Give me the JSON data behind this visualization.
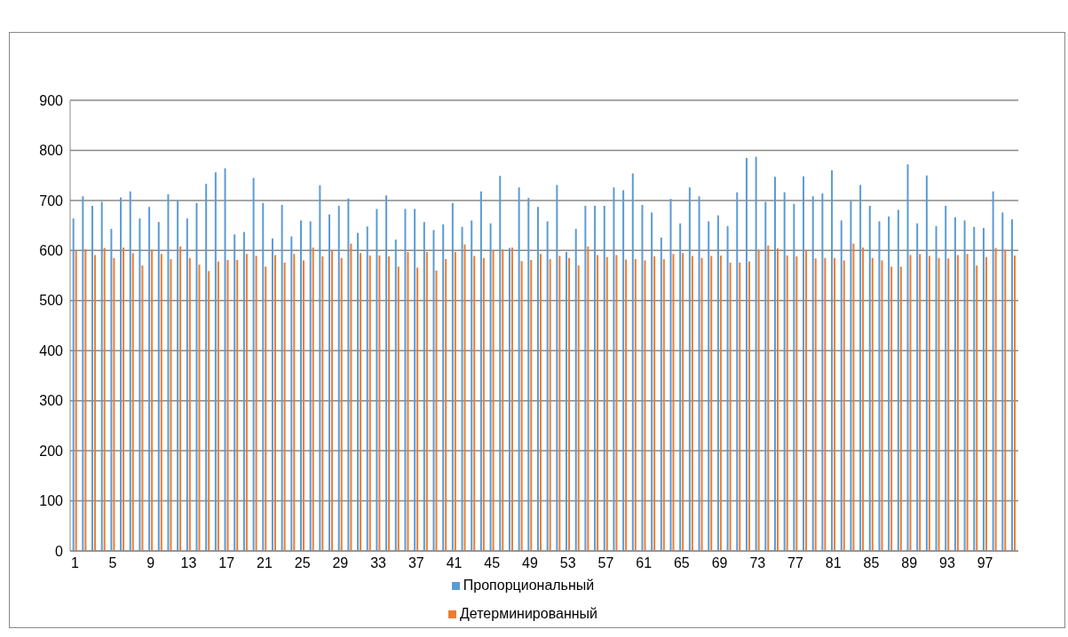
{
  "chart_data": {
    "type": "bar",
    "categories": [
      "1",
      null,
      null,
      null,
      "5",
      null,
      null,
      null,
      "9",
      null,
      null,
      null,
      "13",
      null,
      null,
      null,
      "17",
      null,
      null,
      null,
      "21",
      null,
      null,
      null,
      "25",
      null,
      null,
      null,
      "29",
      null,
      null,
      null,
      "33",
      null,
      null,
      null,
      "37",
      null,
      null,
      null,
      "41",
      null,
      null,
      null,
      "45",
      null,
      null,
      null,
      "49",
      null,
      null,
      null,
      "53",
      null,
      null,
      null,
      "57",
      null,
      null,
      null,
      "61",
      null,
      null,
      null,
      "65",
      null,
      null,
      null,
      "69",
      null,
      null,
      null,
      "73",
      null,
      null,
      null,
      "77",
      null,
      null,
      null,
      "81",
      null,
      null,
      null,
      "85",
      null,
      null,
      null,
      "89",
      null,
      null,
      null,
      "93",
      null,
      null,
      null,
      "97",
      null,
      null,
      null
    ],
    "series": [
      {
        "name": "Пропорциональный",
        "color": "#5b9bd5",
        "values": [
          664,
          708,
          689,
          697,
          643,
          706,
          718,
          664,
          687,
          657,
          712,
          700,
          664,
          695,
          733,
          756,
          764,
          632,
          637,
          745,
          695,
          624,
          691,
          628,
          660,
          658,
          730,
          672,
          689,
          704,
          635,
          648,
          683,
          710,
          622,
          683,
          683,
          657,
          641,
          652,
          695,
          647,
          660,
          718,
          654,
          749,
          605,
          726,
          705,
          687,
          658,
          731,
          597,
          643,
          689,
          689,
          689,
          726,
          720,
          754,
          691,
          676,
          626,
          703,
          654,
          726,
          708,
          658,
          670,
          649,
          716,
          785,
          787,
          697,
          747,
          716,
          693,
          748,
          708,
          714,
          760,
          660,
          699,
          731,
          689,
          658,
          668,
          681,
          772,
          654,
          750,
          649,
          689,
          666,
          660,
          647,
          645,
          718,
          676,
          662
        ]
      },
      {
        "name": "Детерминированный",
        "color": "#ed7d31",
        "values": [
          599,
          603,
          591,
          605,
          585,
          606,
          595,
          570,
          602,
          593,
          583,
          608,
          585,
          572,
          559,
          578,
          581,
          581,
          593,
          589,
          568,
          591,
          576,
          593,
          580,
          606,
          588,
          601,
          585,
          614,
          595,
          590,
          590,
          588,
          568,
          597,
          566,
          597,
          560,
          583,
          597,
          612,
          589,
          585,
          599,
          602,
          606,
          579,
          581,
          593,
          583,
          589,
          585,
          570,
          608,
          591,
          587,
          591,
          582,
          583,
          580,
          588,
          583,
          593,
          595,
          589,
          585,
          589,
          590,
          576,
          576,
          578,
          601,
          610,
          604,
          590,
          588,
          601,
          584,
          585,
          585,
          580,
          614,
          606,
          585,
          580,
          568,
          568,
          591,
          593,
          589,
          585,
          584,
          591,
          593,
          570,
          587,
          605,
          601,
          590
        ]
      }
    ],
    "ylim": [
      0,
      900
    ],
    "yticks": [
      0,
      100,
      200,
      300,
      400,
      500,
      600,
      700,
      800,
      900
    ],
    "grid": "y",
    "legend": "bottom"
  }
}
